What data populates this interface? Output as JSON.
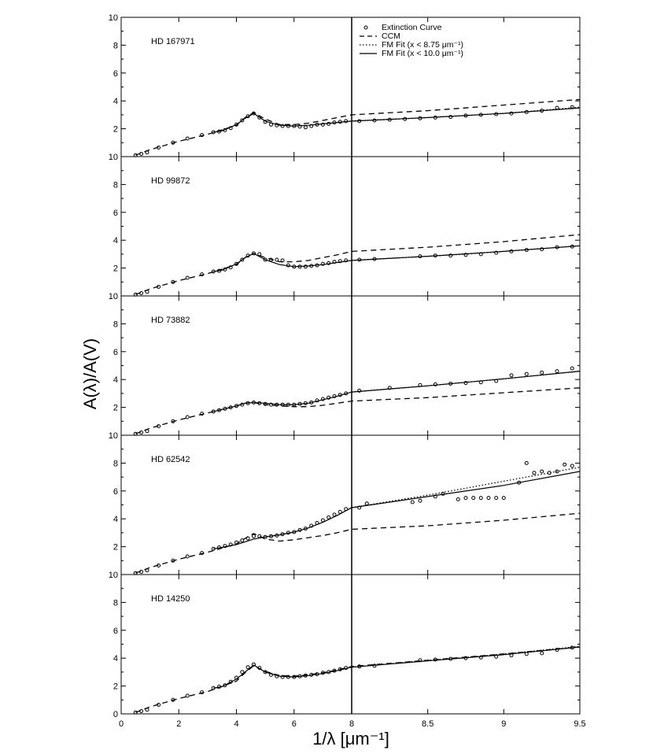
{
  "figure": {
    "ylabel": "A(λ)/A(V)",
    "xlabel": "1/λ [μm⁻¹]",
    "legend": {
      "placement": "top-right of first panel",
      "entries": [
        {
          "label": "Extinction Curve",
          "style": "points"
        },
        {
          "label": "CCM",
          "style": "dashed"
        },
        {
          "label": "FM Fit (x < 8.75 μm⁻¹)",
          "style": "dotted"
        },
        {
          "label": "FM Fit (x < 10.0 μm⁻¹)",
          "style": "solid"
        }
      ]
    },
    "left_xaxis": {
      "range": [
        0,
        8
      ],
      "ticks": [
        "0",
        "2",
        "4",
        "6",
        "8"
      ],
      "tick_values": [
        0,
        2,
        4,
        6,
        8
      ]
    },
    "right_xaxis": {
      "range": [
        8,
        9.5
      ],
      "ticks": [
        "8",
        "8.5",
        "9",
        "9.5"
      ],
      "tick_values": [
        8,
        8.5,
        9,
        9.5
      ]
    },
    "yaxis": {
      "range": [
        0,
        10
      ],
      "ticks": [
        "0",
        "2",
        "4",
        "6",
        "8",
        "10"
      ],
      "tick_values": [
        0,
        2,
        4,
        6,
        8,
        10
      ]
    }
  },
  "chart_data": [
    {
      "type": "line",
      "label": "HD 167971",
      "xlim": [
        0,
        9.5
      ],
      "ylim": [
        0,
        10
      ],
      "grid": false,
      "ccm": {
        "x": [
          0.5,
          1,
          2,
          3,
          4,
          4.3,
          4.6,
          5,
          5.5,
          6,
          6.5,
          7,
          7.5,
          8,
          8.5,
          9,
          9.5
        ],
        "y": [
          0.1,
          0.5,
          1.1,
          1.6,
          2.25,
          2.8,
          3.15,
          2.7,
          2.3,
          2.3,
          2.4,
          2.6,
          2.8,
          3.0,
          3.3,
          3.7,
          4.1
        ]
      },
      "fm_fit_10": {
        "x": [
          3.2,
          3.5,
          4,
          4.3,
          4.6,
          5,
          5.5,
          6,
          6.5,
          7,
          7.5,
          8,
          8.5,
          9,
          9.5
        ],
        "y": [
          1.75,
          1.85,
          2.3,
          2.75,
          3.1,
          2.55,
          2.25,
          2.2,
          2.25,
          2.35,
          2.45,
          2.55,
          2.8,
          3.1,
          3.5
        ]
      },
      "fm_fit_875": {
        "x": [
          8,
          8.5,
          8.75,
          9,
          9.5
        ],
        "y": [
          2.55,
          2.8,
          2.95,
          3.1,
          3.55
        ]
      },
      "extinction_curve": {
        "x": [
          0.5,
          0.7,
          0.9,
          1.3,
          1.8,
          2.3,
          2.8,
          3.2,
          3.4,
          3.6,
          3.8,
          4.0,
          4.2,
          4.4,
          4.6,
          4.8,
          5.0,
          5.2,
          5.4,
          5.6,
          5.8,
          6.0,
          6.2,
          6.4,
          6.6,
          6.8,
          7.0,
          7.2,
          7.4,
          7.6,
          7.8,
          8.05,
          8.15,
          8.25,
          8.35,
          8.45,
          8.55,
          8.65,
          8.75,
          8.85,
          8.95,
          9.05,
          9.15,
          9.25,
          9.35,
          9.45
        ],
        "y": [
          0.1,
          0.2,
          0.3,
          0.65,
          1.0,
          1.3,
          1.55,
          1.75,
          1.8,
          1.9,
          2.05,
          2.3,
          2.6,
          2.9,
          3.1,
          2.8,
          2.5,
          2.3,
          2.25,
          2.2,
          2.2,
          2.2,
          2.15,
          2.1,
          2.2,
          2.3,
          2.3,
          2.35,
          2.45,
          2.5,
          2.55,
          2.55,
          2.6,
          2.65,
          2.7,
          2.75,
          2.8,
          2.85,
          2.95,
          3.0,
          3.05,
          3.1,
          3.2,
          3.3,
          3.5,
          3.55
        ]
      }
    },
    {
      "type": "line",
      "label": "HD 99872",
      "xlim": [
        0,
        9.5
      ],
      "ylim": [
        0,
        10
      ],
      "grid": false,
      "ccm": {
        "x": [
          0.5,
          1,
          2,
          3,
          4,
          4.3,
          4.6,
          5,
          5.5,
          6,
          6.5,
          7,
          7.5,
          8,
          8.5,
          9,
          9.5
        ],
        "y": [
          0.1,
          0.5,
          1.1,
          1.6,
          2.25,
          2.75,
          3.05,
          2.75,
          2.45,
          2.45,
          2.55,
          2.75,
          2.95,
          3.2,
          3.5,
          3.9,
          4.4
        ]
      },
      "fm_fit_10": {
        "x": [
          3.2,
          3.5,
          4,
          4.3,
          4.6,
          5,
          5.5,
          6,
          6.5,
          7,
          7.5,
          8,
          8.5,
          9,
          9.5
        ],
        "y": [
          1.75,
          1.85,
          2.3,
          2.75,
          3.05,
          2.6,
          2.25,
          2.1,
          2.15,
          2.25,
          2.4,
          2.55,
          2.85,
          3.2,
          3.6
        ]
      },
      "fm_fit_875": {
        "x": [
          8,
          8.5,
          8.75,
          9,
          9.5
        ],
        "y": [
          2.55,
          2.85,
          3.0,
          3.2,
          3.6
        ]
      },
      "extinction_curve": {
        "x": [
          0.5,
          0.7,
          0.9,
          1.3,
          1.8,
          2.3,
          2.8,
          3.2,
          3.4,
          3.6,
          3.8,
          4.0,
          4.2,
          4.4,
          4.6,
          4.8,
          5.0,
          5.2,
          5.4,
          5.6,
          5.8,
          6.0,
          6.2,
          6.4,
          6.6,
          6.8,
          7.0,
          7.2,
          7.4,
          7.6,
          7.8,
          8.05,
          8.15,
          8.45,
          8.55,
          8.65,
          8.75,
          8.85,
          8.95,
          9.05,
          9.15,
          9.25,
          9.35,
          9.45
        ],
        "y": [
          0.1,
          0.2,
          0.3,
          0.65,
          1.0,
          1.3,
          1.55,
          1.75,
          1.8,
          1.9,
          2.05,
          2.3,
          2.6,
          2.9,
          3.05,
          3.0,
          2.6,
          2.6,
          2.6,
          2.55,
          2.2,
          2.1,
          2.1,
          2.1,
          2.15,
          2.2,
          2.3,
          2.35,
          2.45,
          2.5,
          2.55,
          2.6,
          2.65,
          2.85,
          2.9,
          2.9,
          2.95,
          3.0,
          3.1,
          3.2,
          3.3,
          3.35,
          3.5,
          3.55
        ]
      }
    },
    {
      "type": "line",
      "label": "HD 73882",
      "xlim": [
        0,
        9.5
      ],
      "ylim": [
        0,
        10
      ],
      "grid": false,
      "ccm": {
        "x": [
          0.5,
          1,
          2,
          3,
          4,
          4.3,
          4.6,
          5,
          5.5,
          6,
          6.5,
          7,
          7.5,
          8,
          8.5,
          9,
          9.5
        ],
        "y": [
          0.1,
          0.5,
          1.1,
          1.6,
          2.1,
          2.3,
          2.35,
          2.2,
          2.1,
          2.05,
          2.05,
          2.15,
          2.3,
          2.45,
          2.7,
          3.05,
          3.4
        ]
      },
      "fm_fit_10": {
        "x": [
          3.2,
          3.5,
          4,
          4.3,
          4.6,
          5,
          5.5,
          6,
          6.5,
          7,
          7.5,
          8,
          8.5,
          9,
          9.5
        ],
        "y": [
          1.7,
          1.85,
          2.1,
          2.3,
          2.35,
          2.3,
          2.2,
          2.2,
          2.3,
          2.55,
          2.8,
          3.1,
          3.55,
          4.05,
          4.6
        ]
      },
      "fm_fit_875": {
        "x": [
          8,
          8.5,
          8.75,
          9,
          9.5
        ],
        "y": [
          3.1,
          3.55,
          3.8,
          4.05,
          4.6
        ]
      },
      "extinction_curve": {
        "x": [
          0.5,
          0.7,
          0.9,
          1.3,
          1.8,
          2.3,
          2.8,
          3.2,
          3.4,
          3.6,
          3.8,
          4.0,
          4.2,
          4.4,
          4.6,
          4.8,
          5.0,
          5.2,
          5.4,
          5.6,
          5.8,
          6.0,
          6.2,
          6.4,
          6.6,
          6.8,
          7.0,
          7.2,
          7.4,
          7.6,
          7.8,
          8.05,
          8.25,
          8.45,
          8.55,
          8.65,
          8.75,
          8.85,
          8.95,
          9.05,
          9.15,
          9.25,
          9.35,
          9.45
        ],
        "y": [
          0.1,
          0.2,
          0.3,
          0.65,
          1.0,
          1.3,
          1.55,
          1.7,
          1.8,
          1.9,
          2.0,
          2.1,
          2.2,
          2.3,
          2.35,
          2.3,
          2.25,
          2.2,
          2.2,
          2.2,
          2.2,
          2.2,
          2.25,
          2.3,
          2.35,
          2.5,
          2.6,
          2.7,
          2.8,
          2.9,
          3.0,
          3.2,
          3.4,
          3.6,
          3.65,
          3.7,
          3.75,
          3.8,
          3.9,
          4.3,
          4.4,
          4.5,
          4.6,
          4.8
        ]
      }
    },
    {
      "type": "line",
      "label": "HD 62542",
      "xlim": [
        0,
        9.5
      ],
      "ylim": [
        0,
        10
      ],
      "grid": false,
      "ccm": {
        "x": [
          0.5,
          1,
          2,
          3,
          4,
          4.3,
          4.6,
          5,
          5.5,
          6,
          6.5,
          7,
          7.5,
          8,
          8.5,
          9,
          9.5
        ],
        "y": [
          0.1,
          0.5,
          1.1,
          1.6,
          2.2,
          2.6,
          2.95,
          2.55,
          2.4,
          2.5,
          2.65,
          2.8,
          3.0,
          3.25,
          3.5,
          3.9,
          4.4
        ]
      },
      "fm_fit_10": {
        "x": [
          3.2,
          3.5,
          4,
          4.3,
          4.6,
          5,
          5.5,
          6,
          6.5,
          7,
          7.5,
          8,
          8.5,
          9,
          9.5
        ],
        "y": [
          1.85,
          1.95,
          2.15,
          2.35,
          2.55,
          2.7,
          2.85,
          3.05,
          3.35,
          3.75,
          4.25,
          4.8,
          5.6,
          6.4,
          7.4
        ]
      },
      "fm_fit_875": {
        "x": [
          8,
          8.5,
          8.75,
          9,
          9.5
        ],
        "y": [
          4.8,
          5.7,
          6.2,
          6.7,
          7.7
        ]
      },
      "extinction_curve": {
        "x": [
          0.5,
          0.7,
          0.9,
          1.3,
          1.8,
          2.3,
          2.8,
          3.2,
          3.4,
          3.6,
          3.8,
          4.0,
          4.2,
          4.4,
          4.6,
          4.8,
          5.0,
          5.2,
          5.4,
          5.6,
          5.8,
          6.0,
          6.2,
          6.4,
          6.6,
          6.8,
          7.0,
          7.2,
          7.4,
          7.6,
          7.8,
          8.05,
          8.1,
          8.4,
          8.45,
          8.55,
          8.6,
          8.7,
          8.75,
          8.8,
          8.85,
          8.9,
          8.95,
          9.0,
          9.1,
          9.15,
          9.2,
          9.25,
          9.3,
          9.35,
          9.4,
          9.45
        ],
        "y": [
          0.1,
          0.2,
          0.3,
          0.65,
          1.0,
          1.3,
          1.55,
          1.85,
          1.95,
          2.05,
          2.15,
          2.3,
          2.45,
          2.6,
          2.75,
          2.75,
          2.7,
          2.75,
          2.8,
          2.9,
          3.0,
          3.05,
          3.2,
          3.3,
          3.5,
          3.7,
          3.9,
          4.1,
          4.3,
          4.5,
          4.7,
          4.8,
          5.1,
          5.2,
          5.3,
          5.6,
          5.8,
          5.4,
          5.5,
          5.5,
          5.5,
          5.5,
          5.5,
          5.5,
          6.6,
          8.0,
          7.3,
          7.4,
          7.3,
          7.4,
          7.9,
          7.8
        ]
      }
    },
    {
      "type": "line",
      "label": "HD 14250",
      "xlim": [
        0,
        9.5
      ],
      "ylim": [
        0,
        10
      ],
      "grid": false,
      "ccm": {
        "x": [
          0.5,
          1,
          2,
          3,
          4,
          4.3,
          4.6,
          5,
          5.5,
          6,
          6.5,
          7,
          7.5,
          8,
          8.5,
          9,
          9.5
        ],
        "y": [
          0.1,
          0.5,
          1.1,
          1.6,
          2.35,
          2.95,
          3.45,
          3.05,
          2.75,
          2.7,
          2.8,
          2.95,
          3.15,
          3.4,
          3.85,
          4.3,
          4.8
        ]
      },
      "fm_fit_10": {
        "x": [
          3.2,
          3.5,
          4,
          4.3,
          4.6,
          5,
          5.5,
          6,
          6.5,
          7,
          7.5,
          8,
          8.5,
          9,
          9.5
        ],
        "y": [
          1.85,
          1.95,
          2.5,
          3.0,
          3.5,
          3.0,
          2.7,
          2.65,
          2.75,
          2.9,
          3.1,
          3.35,
          3.8,
          4.25,
          4.8
        ]
      },
      "fm_fit_875": {
        "x": [
          8,
          8.5,
          8.75,
          9,
          9.5
        ],
        "y": [
          3.35,
          3.85,
          4.05,
          4.3,
          4.85
        ]
      },
      "extinction_curve": {
        "x": [
          0.5,
          0.7,
          0.9,
          1.3,
          1.8,
          2.3,
          2.8,
          3.2,
          3.4,
          3.6,
          3.8,
          4.0,
          4.2,
          4.4,
          4.6,
          4.8,
          5.0,
          5.2,
          5.4,
          5.6,
          5.8,
          6.0,
          6.2,
          6.4,
          6.6,
          6.8,
          7.0,
          7.2,
          7.4,
          7.6,
          7.8,
          8.05,
          8.15,
          8.45,
          8.55,
          8.65,
          8.75,
          8.85,
          8.95,
          9.05,
          9.15,
          9.25,
          9.35,
          9.45
        ],
        "y": [
          0.1,
          0.2,
          0.3,
          0.65,
          1.0,
          1.3,
          1.55,
          1.85,
          1.95,
          2.05,
          2.3,
          2.6,
          3.0,
          3.35,
          3.55,
          3.3,
          3.0,
          2.8,
          2.7,
          2.65,
          2.65,
          2.65,
          2.7,
          2.75,
          2.8,
          2.85,
          2.95,
          3.0,
          3.1,
          3.2,
          3.3,
          3.4,
          3.45,
          3.85,
          3.9,
          3.95,
          4.0,
          4.05,
          4.1,
          4.2,
          4.3,
          4.35,
          4.6,
          4.75
        ]
      }
    }
  ]
}
